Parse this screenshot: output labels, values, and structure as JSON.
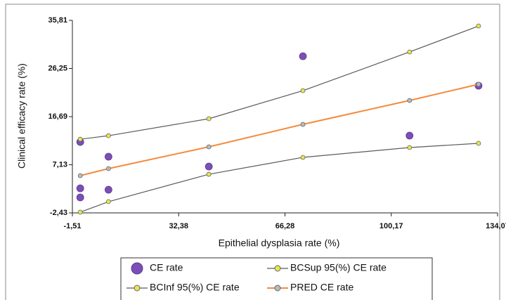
{
  "chart_data": {
    "type": "scatter",
    "xlabel": "Epithelial dysplasia rate (%)",
    "ylabel": "Clinical efficacy rate (%)",
    "xlim": [
      -1.51,
      134.07
    ],
    "xticks": [
      {
        "value": -1.51,
        "label": "-1,51"
      },
      {
        "value": 32.38,
        "label": "32,38"
      },
      {
        "value": 66.28,
        "label": "66,28"
      },
      {
        "value": 100.17,
        "label": "100,17"
      },
      {
        "value": 134.07,
        "label": "134,07"
      }
    ],
    "ylim": [
      -2.43,
      35.81
    ],
    "yticks": [
      {
        "value": -2.43,
        "label": "-2,43"
      },
      {
        "value": 7.13,
        "label": "7,13"
      },
      {
        "value": 16.69,
        "label": "16,69"
      },
      {
        "value": 26.25,
        "label": "26,25"
      },
      {
        "value": 35.81,
        "label": "35,81"
      }
    ],
    "legend": "bottom",
    "series": [
      {
        "name": "CE rate",
        "color": "#7b4fb5",
        "line": false,
        "marker_color": "#7b4fb5",
        "x": [
          1,
          1,
          1,
          10,
          10,
          42,
          72,
          106,
          128
        ],
        "values": [
          11.66,
          2.45,
          0.64,
          8.73,
          2.17,
          6.78,
          28.69,
          12.92,
          22.83
        ]
      },
      {
        "name": "BCSup 95(%) CE rate",
        "color": "#5a5a5a",
        "line": true,
        "marker_color": "#e6e650",
        "x": [
          1,
          10,
          42,
          72,
          106,
          128
        ],
        "values": [
          12.2,
          12.9,
          16.27,
          21.85,
          29.53,
          34.69
        ]
      },
      {
        "name": "BCInf 95(%) CE rate",
        "color": "#5a5a5a",
        "line": true,
        "marker_color": "#e6e650",
        "x": [
          1,
          10,
          42,
          72,
          106,
          128
        ],
        "values": [
          -2.29,
          -0.2,
          5.24,
          8.6,
          10.55,
          11.39
        ]
      },
      {
        "name": "PRED CE rate",
        "color": "#f58a3c",
        "line": true,
        "marker_color": "#b4bcc4",
        "x": [
          1,
          10,
          42,
          72,
          106,
          128
        ],
        "values": [
          4.97,
          6.36,
          10.69,
          15.15,
          19.9,
          23.11
        ]
      }
    ]
  }
}
